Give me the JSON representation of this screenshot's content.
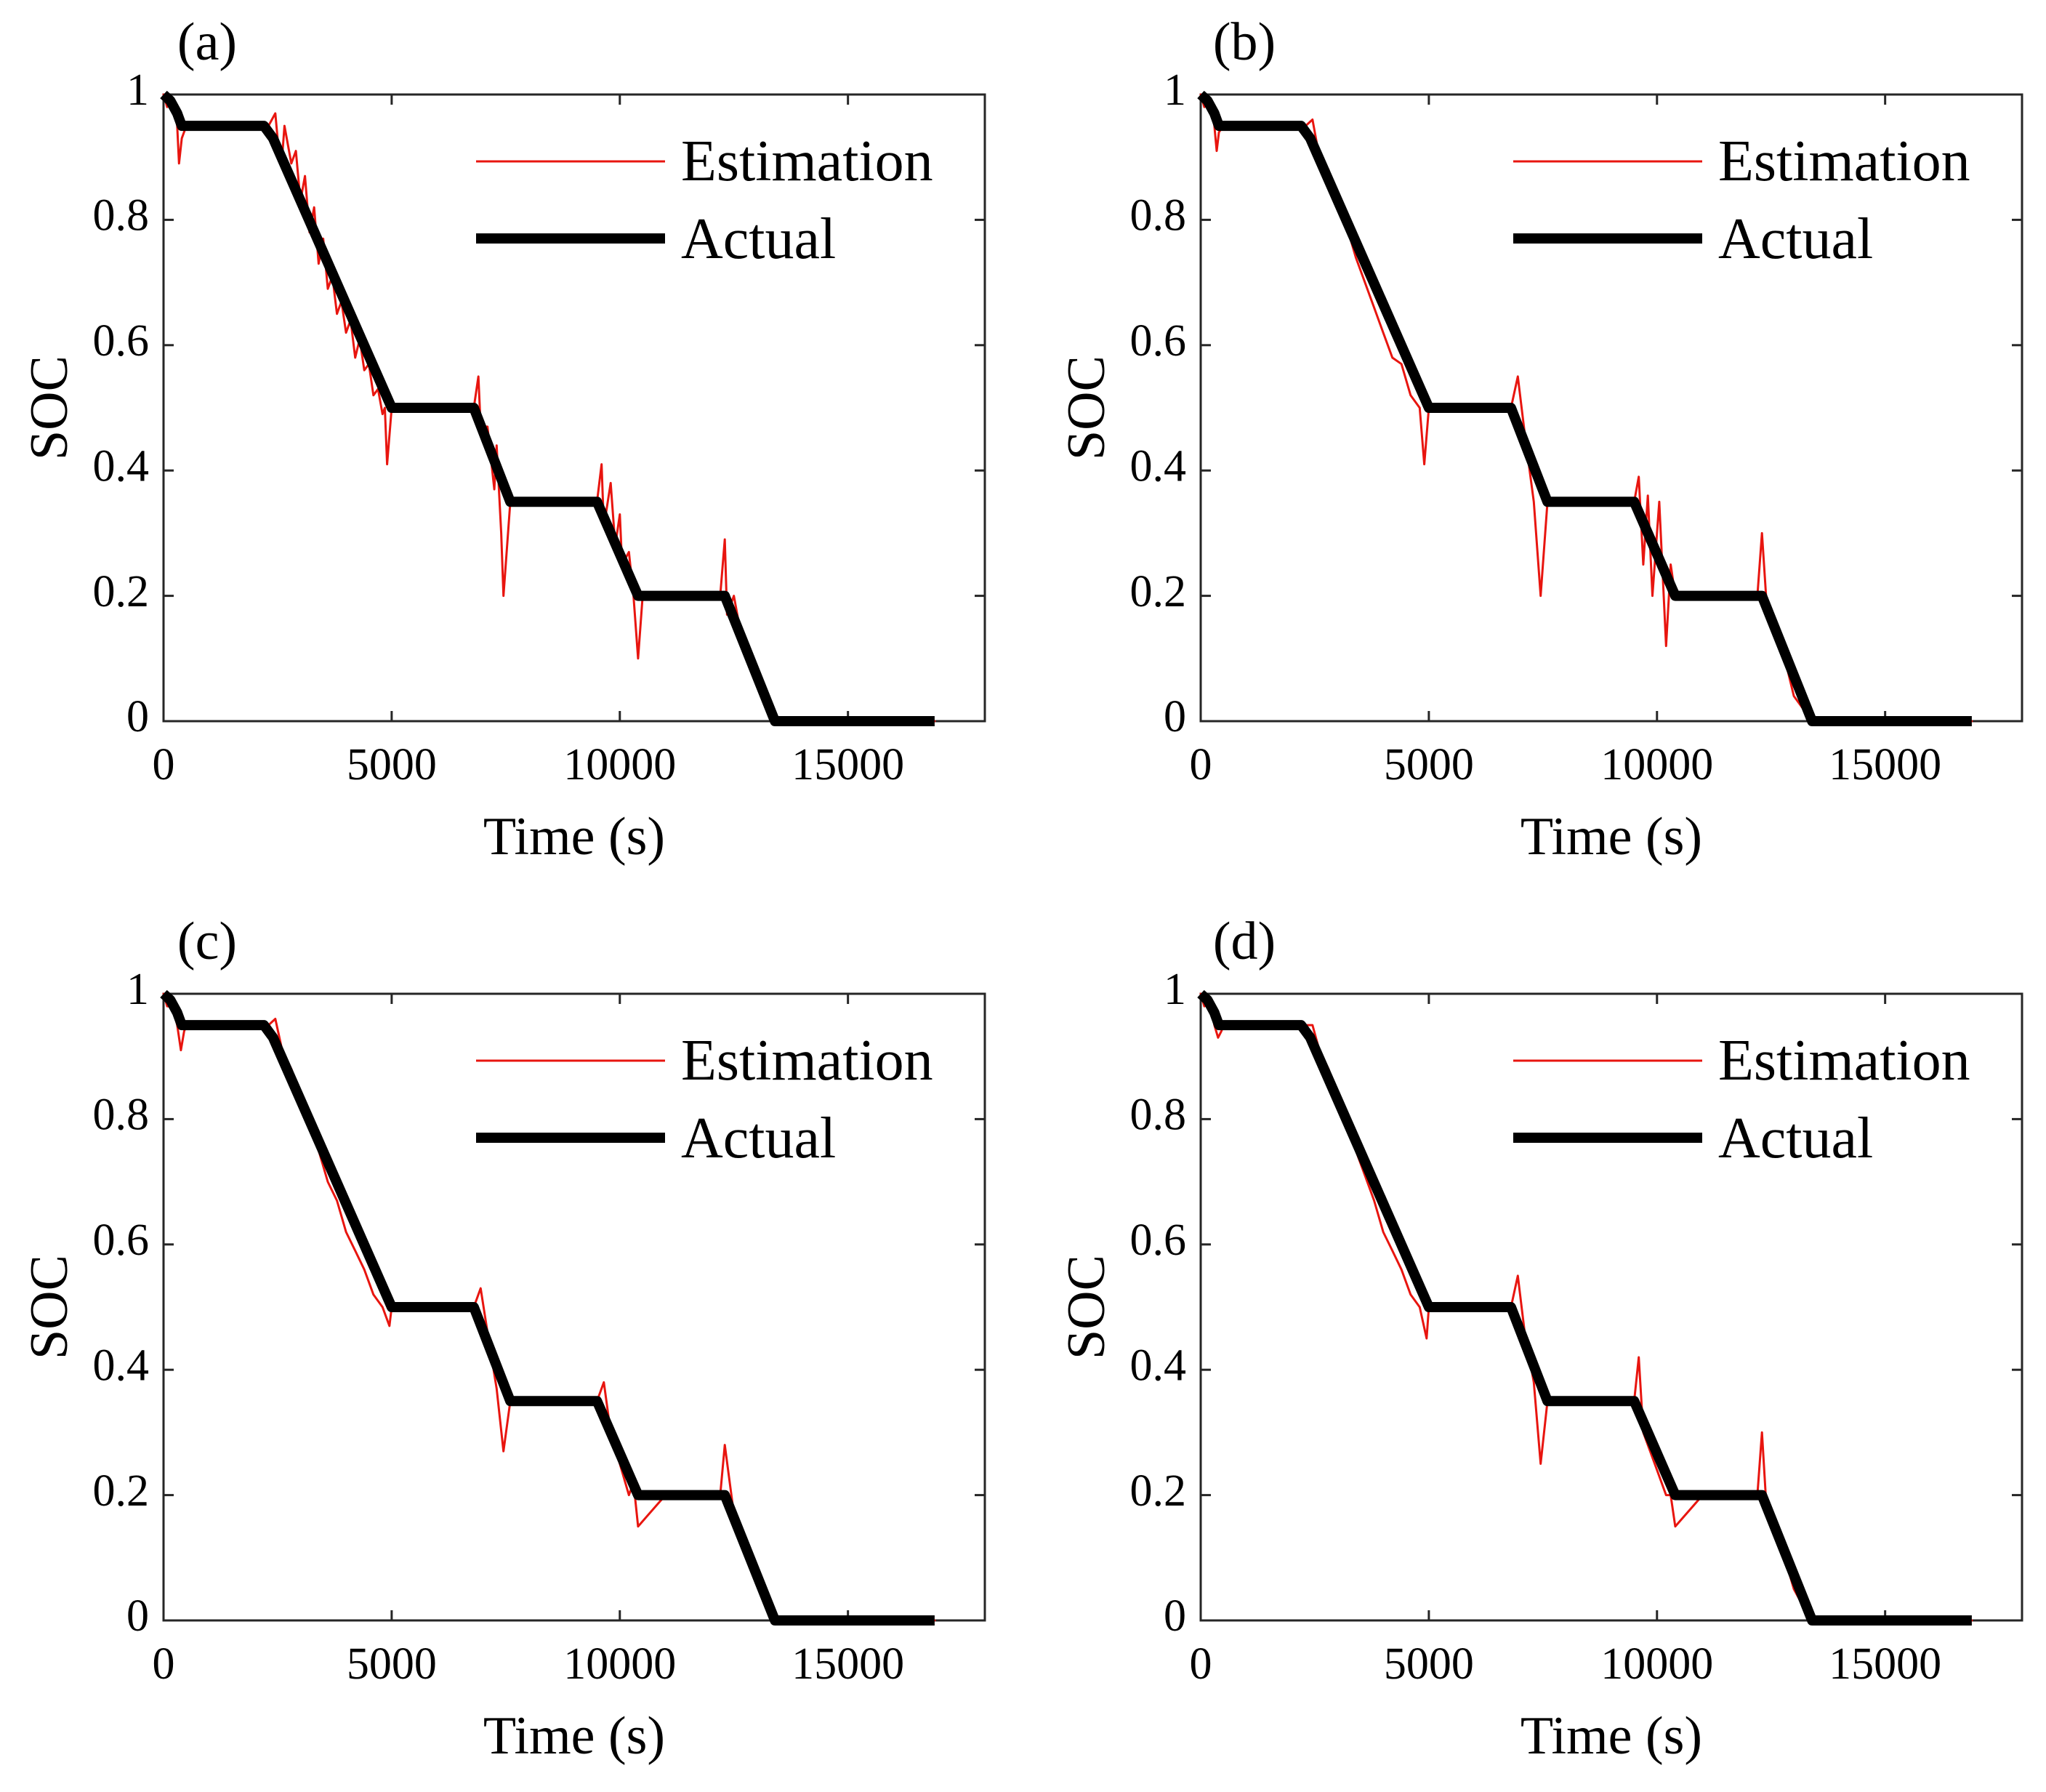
{
  "figure": {
    "legend": {
      "estimation_label": "Estimation",
      "actual_label": "Actual",
      "placement": "top-right"
    },
    "colors": {
      "estimation": "#e8150f",
      "actual": "#000000",
      "axes": "#262626"
    }
  },
  "chart_data": [
    {
      "type": "line",
      "panel_label": "(a)",
      "xlabel": "Time (s)",
      "ylabel": "SOC",
      "xlim": [
        0,
        18000
      ],
      "ylim": [
        0,
        1
      ],
      "x_ticks": [
        0,
        5000,
        10000,
        15000
      ],
      "y_ticks": [
        0,
        0.2,
        0.4,
        0.6,
        0.8,
        1
      ],
      "x_tick_labels": [
        "0",
        "5000",
        "10000",
        "15000"
      ],
      "y_tick_labels": [
        "0",
        "0.2",
        "0.4",
        "0.6",
        "0.8",
        "1"
      ],
      "series": [
        {
          "name": "Estimation",
          "x": [
            0,
            80,
            200,
            300,
            340,
            400,
            500,
            700,
            1200,
            2000,
            2300,
            2450,
            2500,
            2600,
            2650,
            2800,
            2900,
            3000,
            3100,
            3200,
            3300,
            3400,
            3500,
            3600,
            3700,
            3800,
            3900,
            4000,
            4100,
            4200,
            4300,
            4400,
            4500,
            4600,
            4700,
            4800,
            4850,
            4900,
            5000,
            6000,
            6800,
            6900,
            6950,
            7100,
            7250,
            7300,
            7400,
            7450,
            7600,
            8000,
            9000,
            9500,
            9600,
            9650,
            9800,
            9900,
            10000,
            10050,
            10200,
            10300,
            10400,
            10500,
            11000,
            12000,
            12200,
            12300,
            12350,
            12500,
            12600,
            12700,
            12900,
            13100,
            13300,
            13400,
            14000,
            15000,
            16000,
            16900
          ],
          "values": [
            1.0,
            0.98,
            0.99,
            0.95,
            0.89,
            0.93,
            0.95,
            0.95,
            0.95,
            0.95,
            0.95,
            0.97,
            0.93,
            0.9,
            0.95,
            0.89,
            0.91,
            0.83,
            0.87,
            0.78,
            0.82,
            0.73,
            0.77,
            0.69,
            0.71,
            0.65,
            0.67,
            0.62,
            0.64,
            0.58,
            0.61,
            0.56,
            0.57,
            0.52,
            0.53,
            0.49,
            0.5,
            0.41,
            0.5,
            0.5,
            0.5,
            0.55,
            0.47,
            0.47,
            0.37,
            0.44,
            0.3,
            0.2,
            0.35,
            0.35,
            0.35,
            0.35,
            0.41,
            0.31,
            0.38,
            0.28,
            0.33,
            0.25,
            0.27,
            0.2,
            0.1,
            0.2,
            0.2,
            0.2,
            0.2,
            0.29,
            0.17,
            0.2,
            0.16,
            0.14,
            0.1,
            0.05,
            0.02,
            0.0,
            0.0,
            0.0,
            0.0,
            0.0
          ]
        },
        {
          "name": "Actual",
          "x": [
            0,
            150,
            300,
            400,
            500,
            2200,
            2400,
            5000,
            6800,
            7600,
            9500,
            10400,
            12300,
            13400,
            16900
          ],
          "values": [
            1.0,
            0.99,
            0.97,
            0.95,
            0.95,
            0.95,
            0.93,
            0.5,
            0.5,
            0.35,
            0.35,
            0.2,
            0.2,
            0.0,
            0.0
          ]
        }
      ]
    },
    {
      "type": "line",
      "panel_label": "(b)",
      "xlabel": "Time (s)",
      "ylabel": "SOC",
      "xlim": [
        0,
        18000
      ],
      "ylim": [
        0,
        1
      ],
      "x_ticks": [
        0,
        5000,
        10000,
        15000
      ],
      "y_ticks": [
        0,
        0.2,
        0.4,
        0.6,
        0.8,
        1
      ],
      "x_tick_labels": [
        "0",
        "5000",
        "10000",
        "15000"
      ],
      "y_tick_labels": [
        "0",
        "0.2",
        "0.4",
        "0.6",
        "0.8",
        "1"
      ],
      "series": [
        {
          "name": "Estimation",
          "x": [
            0,
            80,
            200,
            300,
            350,
            400,
            500,
            700,
            1200,
            2000,
            2300,
            2450,
            2600,
            2800,
            2900,
            3000,
            3200,
            3400,
            3600,
            3800,
            4000,
            4200,
            4400,
            4600,
            4800,
            4900,
            5000,
            6000,
            6800,
            6950,
            7100,
            7300,
            7450,
            7600,
            8000,
            9000,
            9500,
            9600,
            9700,
            9800,
            9900,
            10050,
            10200,
            10300,
            10400,
            11000,
            12000,
            12200,
            12300,
            12400,
            12600,
            12800,
            13000,
            13300,
            13400,
            14000,
            16900
          ],
          "values": [
            1.0,
            0.98,
            0.99,
            0.95,
            0.91,
            0.94,
            0.95,
            0.95,
            0.95,
            0.95,
            0.95,
            0.96,
            0.9,
            0.88,
            0.85,
            0.84,
            0.79,
            0.74,
            0.7,
            0.66,
            0.62,
            0.58,
            0.57,
            0.52,
            0.5,
            0.41,
            0.5,
            0.5,
            0.5,
            0.55,
            0.46,
            0.35,
            0.2,
            0.35,
            0.35,
            0.35,
            0.35,
            0.39,
            0.25,
            0.36,
            0.2,
            0.35,
            0.12,
            0.25,
            0.2,
            0.2,
            0.2,
            0.2,
            0.3,
            0.19,
            0.15,
            0.1,
            0.04,
            0.01,
            0.0,
            0.0,
            0.0
          ]
        },
        {
          "name": "Actual",
          "x": [
            0,
            150,
            300,
            400,
            500,
            2200,
            2400,
            5000,
            6800,
            7600,
            9500,
            10400,
            12300,
            13400,
            16900
          ],
          "values": [
            1.0,
            0.99,
            0.97,
            0.95,
            0.95,
            0.95,
            0.93,
            0.5,
            0.5,
            0.35,
            0.35,
            0.2,
            0.2,
            0.0,
            0.0
          ]
        }
      ]
    },
    {
      "type": "line",
      "panel_label": "(c)",
      "xlabel": "Time (s)",
      "ylabel": "SOC",
      "xlim": [
        0,
        18000
      ],
      "ylim": [
        0,
        1
      ],
      "x_ticks": [
        0,
        5000,
        10000,
        15000
      ],
      "y_ticks": [
        0,
        0.2,
        0.4,
        0.6,
        0.8,
        1
      ],
      "x_tick_labels": [
        "0",
        "5000",
        "10000",
        "15000"
      ],
      "y_tick_labels": [
        "0",
        "0.2",
        "0.4",
        "0.6",
        "0.8",
        "1"
      ],
      "series": [
        {
          "name": "Estimation",
          "x": [
            0,
            80,
            200,
            300,
            380,
            450,
            500,
            700,
            1200,
            2000,
            2300,
            2450,
            2600,
            2800,
            3000,
            3200,
            3400,
            3600,
            3800,
            4000,
            4200,
            4400,
            4600,
            4800,
            4950,
            5000,
            6000,
            6800,
            6950,
            7100,
            7300,
            7450,
            7600,
            8000,
            9000,
            9500,
            9650,
            9800,
            10000,
            10200,
            10300,
            10400,
            11000,
            12000,
            12200,
            12300,
            12500,
            12700,
            12900,
            13100,
            13300,
            13400,
            14000,
            16900
          ],
          "values": [
            1.0,
            0.98,
            0.98,
            0.95,
            0.91,
            0.94,
            0.95,
            0.95,
            0.95,
            0.95,
            0.95,
            0.96,
            0.91,
            0.88,
            0.84,
            0.79,
            0.75,
            0.7,
            0.67,
            0.62,
            0.59,
            0.56,
            0.52,
            0.5,
            0.47,
            0.5,
            0.5,
            0.5,
            0.53,
            0.46,
            0.37,
            0.27,
            0.35,
            0.35,
            0.35,
            0.35,
            0.38,
            0.3,
            0.25,
            0.2,
            0.22,
            0.15,
            0.2,
            0.2,
            0.2,
            0.28,
            0.17,
            0.13,
            0.08,
            0.05,
            0.02,
            0.0,
            0.0,
            0.0
          ]
        },
        {
          "name": "Actual",
          "x": [
            0,
            150,
            300,
            400,
            500,
            2200,
            2400,
            5000,
            6800,
            7600,
            9500,
            10400,
            12300,
            13400,
            16900
          ],
          "values": [
            1.0,
            0.99,
            0.97,
            0.95,
            0.95,
            0.95,
            0.93,
            0.5,
            0.5,
            0.35,
            0.35,
            0.2,
            0.2,
            0.0,
            0.0
          ]
        }
      ]
    },
    {
      "type": "line",
      "panel_label": "(d)",
      "xlabel": "Time (s)",
      "ylabel": "SOC",
      "xlim": [
        0,
        18000
      ],
      "ylim": [
        0,
        1
      ],
      "x_ticks": [
        0,
        5000,
        10000,
        15000
      ],
      "y_ticks": [
        0,
        0.2,
        0.4,
        0.6,
        0.8,
        1
      ],
      "x_tick_labels": [
        "0",
        "5000",
        "10000",
        "15000"
      ],
      "y_tick_labels": [
        "0",
        "0.2",
        "0.4",
        "0.6",
        "0.8",
        "1"
      ],
      "series": [
        {
          "name": "Estimation",
          "x": [
            0,
            80,
            200,
            300,
            380,
            450,
            500,
            700,
            1200,
            2000,
            2300,
            2450,
            2600,
            2800,
            3000,
            3200,
            3400,
            3600,
            3800,
            4000,
            4200,
            4400,
            4600,
            4800,
            4950,
            5000,
            6000,
            6800,
            6950,
            7100,
            7300,
            7450,
            7600,
            8000,
            9000,
            9500,
            9600,
            9700,
            9850,
            10000,
            10200,
            10300,
            10400,
            11000,
            12000,
            12200,
            12300,
            12400,
            12600,
            12800,
            13000,
            13300,
            13400,
            14000,
            16900
          ],
          "values": [
            1.0,
            0.98,
            0.99,
            0.95,
            0.93,
            0.94,
            0.95,
            0.95,
            0.95,
            0.95,
            0.95,
            0.95,
            0.91,
            0.88,
            0.84,
            0.8,
            0.75,
            0.71,
            0.67,
            0.62,
            0.59,
            0.56,
            0.52,
            0.5,
            0.45,
            0.5,
            0.5,
            0.5,
            0.55,
            0.46,
            0.38,
            0.25,
            0.35,
            0.35,
            0.35,
            0.35,
            0.42,
            0.3,
            0.27,
            0.24,
            0.2,
            0.2,
            0.15,
            0.2,
            0.2,
            0.2,
            0.3,
            0.18,
            0.14,
            0.1,
            0.05,
            0.01,
            0.0,
            0.0,
            0.0
          ]
        },
        {
          "name": "Actual",
          "x": [
            0,
            150,
            300,
            400,
            500,
            2200,
            2400,
            5000,
            6800,
            7600,
            9500,
            10400,
            12300,
            13400,
            16900
          ],
          "values": [
            1.0,
            0.99,
            0.97,
            0.95,
            0.95,
            0.95,
            0.93,
            0.5,
            0.5,
            0.35,
            0.35,
            0.2,
            0.2,
            0.0,
            0.0
          ]
        }
      ]
    }
  ]
}
